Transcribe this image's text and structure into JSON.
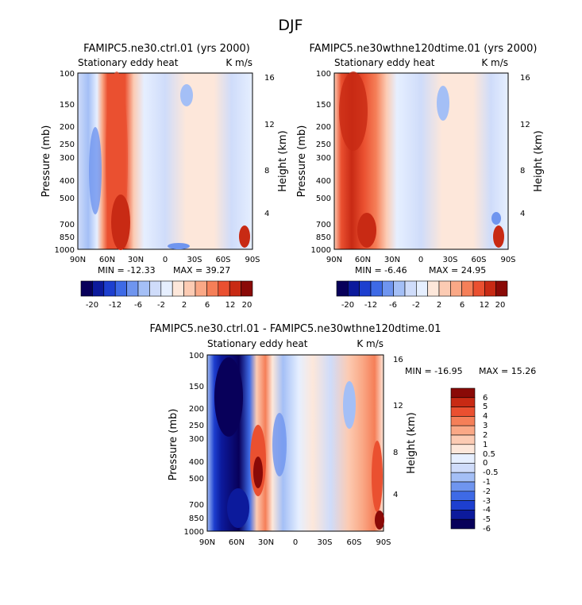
{
  "page_title": "DJF",
  "chart_data": [
    {
      "type": "heatmap",
      "title": "FAMIPC5.ne30.ctrl.01 (yrs 2000)",
      "subtitle_left": "Stationary eddy heat",
      "subtitle_right": "K m/s",
      "xlabel": "",
      "ylabel": "Pressure (mb)",
      "ylabel_right": "Height (km)",
      "x_ticks": [
        "90N",
        "60N",
        "30N",
        "0",
        "30S",
        "60S",
        "90S"
      ],
      "y_ticks": [
        "100",
        "150",
        "200",
        "250",
        "300",
        "400",
        "500",
        "700",
        "850",
        "1000"
      ],
      "y_ticks_right": [
        "16",
        "12",
        "8",
        "4"
      ],
      "stats": {
        "min_label": "MIN = -12.33",
        "max_label": "MAX = 39.27"
      },
      "colorbar_labels": [
        "-20",
        "-12",
        "-6",
        "-2",
        "2",
        "6",
        "12",
        "20"
      ]
    },
    {
      "type": "heatmap",
      "title": "FAMIPC5.ne30wthne120dtime.01 (yrs 2000)",
      "subtitle_left": "Stationary eddy heat",
      "subtitle_right": "K m/s",
      "xlabel": "",
      "ylabel": "Pressure (mb)",
      "ylabel_right": "Height (km)",
      "x_ticks": [
        "90N",
        "60N",
        "30N",
        "0",
        "30S",
        "60S",
        "90S"
      ],
      "y_ticks": [
        "100",
        "150",
        "200",
        "250",
        "300",
        "400",
        "500",
        "700",
        "850",
        "1000"
      ],
      "y_ticks_right": [
        "16",
        "12",
        "8",
        "4"
      ],
      "stats": {
        "min_label": "MIN = -6.46",
        "max_label": "MAX = 24.95"
      },
      "colorbar_labels": [
        "-20",
        "-12",
        "-6",
        "-2",
        "2",
        "6",
        "12",
        "20"
      ]
    },
    {
      "type": "heatmap",
      "title": "FAMIPC5.ne30.ctrl.01 - FAMIPC5.ne30wthne120dtime.01",
      "subtitle_left": "Stationary eddy heat",
      "subtitle_right": "K m/s",
      "xlabel": "",
      "ylabel": "Pressure (mb)",
      "ylabel_right": "Height (km)",
      "x_ticks": [
        "90N",
        "60N",
        "30N",
        "0",
        "30S",
        "60S",
        "90S"
      ],
      "y_ticks": [
        "100",
        "150",
        "200",
        "250",
        "300",
        "400",
        "500",
        "700",
        "850",
        "1000"
      ],
      "y_ticks_right": [
        "16",
        "12",
        "8",
        "4"
      ],
      "stats": {
        "min_label": "MIN = -16.95",
        "max_label": "MAX = 15.26"
      },
      "colorbar_labels": [
        "6",
        "5",
        "4",
        "3",
        "2",
        "1",
        "0.5",
        "0",
        "-0.5",
        "-1",
        "-2",
        "-3",
        "-4",
        "-5",
        "-6"
      ]
    }
  ],
  "colors": {
    "diverging": [
      "#08005a",
      "#0c1a9c",
      "#1d3fcf",
      "#3e6ae6",
      "#6f95ef",
      "#a4bff6",
      "#cfdcfa",
      "#e6efff",
      "#fde7da",
      "#fccbb3",
      "#faa886",
      "#f57f58",
      "#ea5030",
      "#c82a14",
      "#8a0a07"
    ]
  }
}
